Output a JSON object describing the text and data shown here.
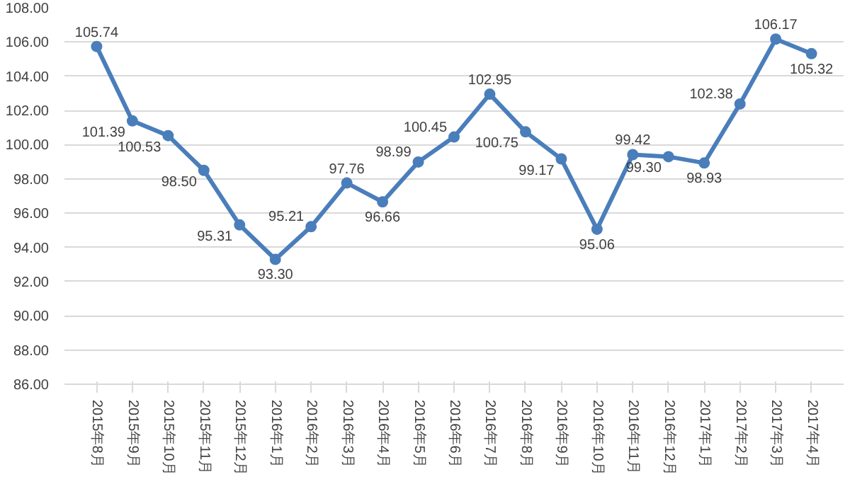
{
  "chart_data": {
    "type": "line",
    "categories": [
      "2015年8月",
      "2015年9月",
      "2015年10月",
      "2015年11月",
      "2015年12月",
      "2016年1月",
      "2016年2月",
      "2016年3月",
      "2016年4月",
      "2016年5月",
      "2016年6月",
      "2016年7月",
      "2016年8月",
      "2016年9月",
      "2016年10月",
      "2016年11月",
      "2016年12月",
      "2017年1月",
      "2017年2月",
      "2017年3月",
      "2017年4月"
    ],
    "values": [
      105.74,
      101.39,
      100.53,
      98.5,
      95.31,
      93.3,
      95.21,
      97.76,
      96.66,
      98.99,
      100.45,
      102.95,
      100.75,
      99.17,
      95.06,
      99.42,
      99.3,
      98.93,
      102.38,
      106.17,
      105.32
    ],
    "value_labels": [
      "105.74",
      "101.39",
      "100.53",
      "98.50",
      "95.31",
      "93.30",
      "95.21",
      "97.76",
      "96.66",
      "98.99",
      "100.45",
      "102.95",
      "100.75",
      "99.17",
      "95.06",
      "99.42",
      "99.30",
      "98.93",
      "102.38",
      "106.17",
      "105.32"
    ],
    "color": "#4a7ebb",
    "ylim": [
      86,
      108
    ],
    "yticks": [
      {
        "value": 86,
        "label": "86.00"
      },
      {
        "value": 88,
        "label": "88.00"
      },
      {
        "value": 90,
        "label": "90.00"
      },
      {
        "value": 92,
        "label": "92.00"
      },
      {
        "value": 94,
        "label": "94.00"
      },
      {
        "value": 96,
        "label": "96.00"
      },
      {
        "value": 98,
        "label": "98.00"
      },
      {
        "value": 100,
        "label": "100.00"
      },
      {
        "value": 102,
        "label": "102.00"
      },
      {
        "value": 104,
        "label": "104.00"
      },
      {
        "value": 106,
        "label": "106.00"
      },
      {
        "value": 108,
        "label": "108.00"
      }
    ],
    "grid": "y",
    "marker": "circle",
    "line_style": "solid"
  }
}
